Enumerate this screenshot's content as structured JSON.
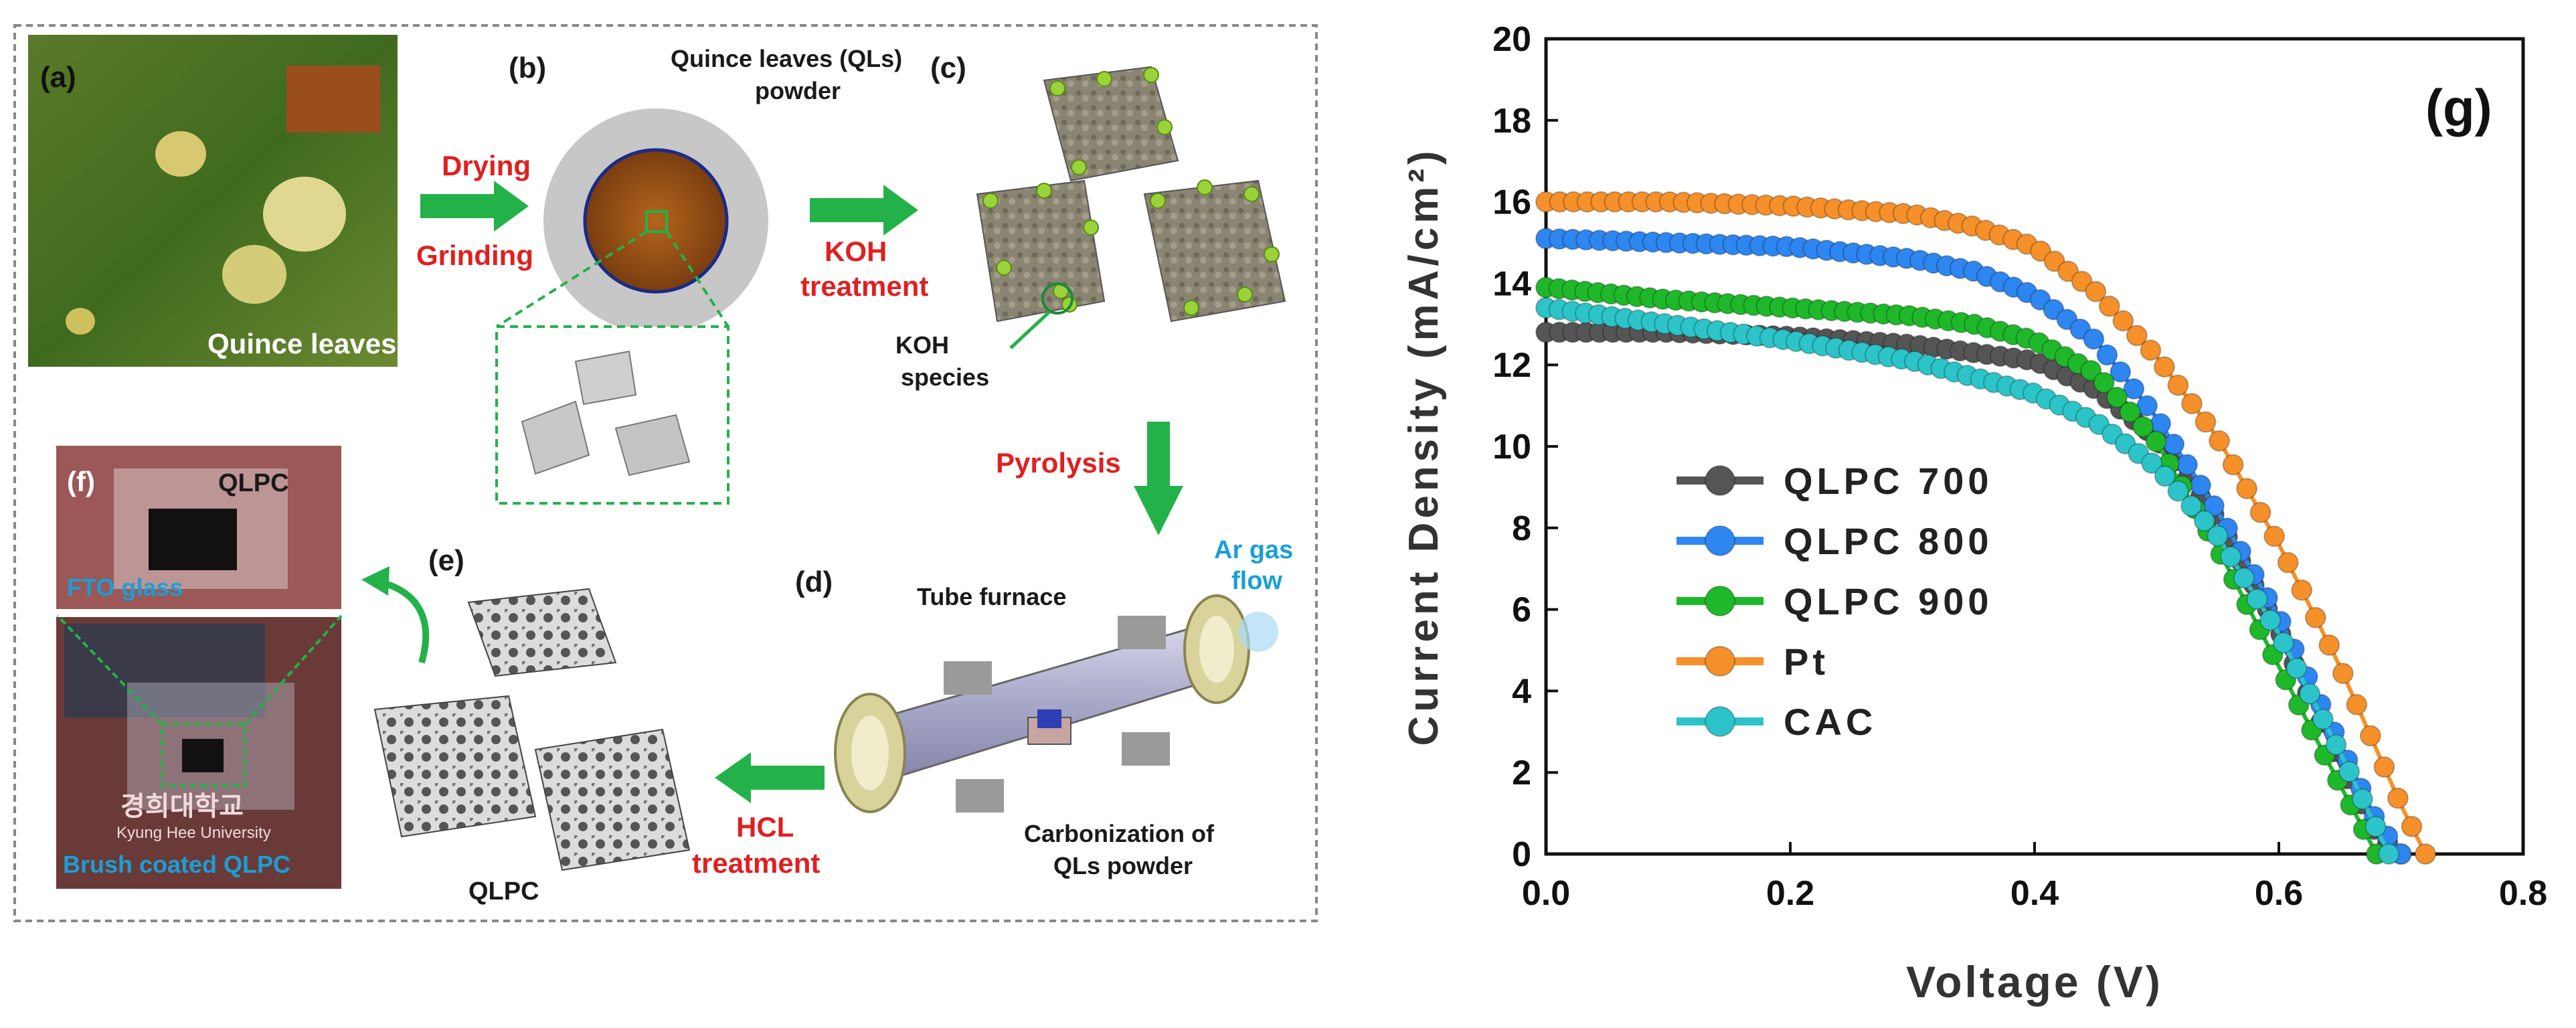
{
  "schematic": {
    "panel_letters": {
      "a": "(a)",
      "b": "(b)",
      "c": "(c)",
      "d": "(d)",
      "e": "(e)",
      "f": "(f)"
    },
    "quince_leaves": "Quince leaves",
    "powder_label_1": "Quince leaves (QLs)",
    "powder_label_2": "powder",
    "drying": "Drying",
    "grinding": "Grinding",
    "koh_treatment_1": "KOH",
    "koh_treatment_2": "treatment",
    "koh_species_1": "KOH",
    "koh_species_2": "species",
    "pyrolysis": "Pyrolysis",
    "ar_gas_1": "Ar gas",
    "ar_gas_2": "flow",
    "tube_furnace": "Tube furnace",
    "carbonization_1": "Carbonization of",
    "carbonization_2": "QLs powder",
    "hcl_treatment_1": "HCL",
    "hcl_treatment_2": "treatment",
    "qlpc_product": "QLPC",
    "qlpc_film": "QLPC",
    "fto_glass": "FTO glass",
    "brush_coated": "Brush coated QLPC",
    "univ_korean": "경희대학교",
    "univ_english": "Kyung Hee University"
  },
  "chart_data": {
    "type": "line",
    "panel_label": "(g)",
    "title": "",
    "xlabel": "Voltage (V)",
    "ylabel": "Current Density (mA/cm²)",
    "xlim": [
      0.0,
      0.8
    ],
    "ylim": [
      0,
      20
    ],
    "xticks": [
      "0.0",
      "0.2",
      "0.4",
      "0.6",
      "0.8"
    ],
    "yticks": [
      "0",
      "2",
      "4",
      "6",
      "8",
      "10",
      "12",
      "14",
      "16",
      "18",
      "20"
    ],
    "legend_position": "left-middle",
    "grid": false,
    "series": [
      {
        "name": "QLPC 700",
        "color": "#555555",
        "x": [
          0.0,
          0.1,
          0.2,
          0.3,
          0.4,
          0.45,
          0.5,
          0.55,
          0.6,
          0.65,
          0.68,
          0.7
        ],
        "y": [
          12.8,
          12.8,
          12.7,
          12.5,
          12.1,
          11.4,
          10.2,
          8.2,
          5.5,
          2.2,
          0.5,
          0
        ]
      },
      {
        "name": "QLPC 800",
        "color": "#2e86f0",
        "x": [
          0.0,
          0.1,
          0.2,
          0.3,
          0.35,
          0.4,
          0.45,
          0.5,
          0.55,
          0.6,
          0.65,
          0.68,
          0.7
        ],
        "y": [
          15.1,
          15.0,
          14.9,
          14.6,
          14.3,
          13.7,
          12.6,
          10.7,
          8.4,
          5.8,
          2.7,
          0.8,
          0
        ]
      },
      {
        "name": "QLPC 900",
        "color": "#1fb82a",
        "x": [
          0.0,
          0.1,
          0.2,
          0.3,
          0.35,
          0.4,
          0.45,
          0.5,
          0.55,
          0.6,
          0.65,
          0.68
        ],
        "y": [
          13.9,
          13.6,
          13.4,
          13.2,
          13.0,
          12.6,
          11.8,
          10.1,
          7.5,
          4.6,
          1.7,
          0
        ]
      },
      {
        "name": "Pt",
        "color": "#f5902a",
        "x": [
          0.0,
          0.1,
          0.2,
          0.3,
          0.35,
          0.4,
          0.45,
          0.5,
          0.55,
          0.6,
          0.65,
          0.7,
          0.72
        ],
        "y": [
          16.0,
          16.0,
          15.9,
          15.7,
          15.4,
          14.9,
          13.8,
          12.2,
          10.2,
          7.6,
          4.6,
          1.2,
          0
        ]
      },
      {
        "name": "CAC",
        "color": "#2cc4c8",
        "x": [
          0.0,
          0.1,
          0.2,
          0.3,
          0.4,
          0.45,
          0.5,
          0.55,
          0.6,
          0.65,
          0.69
        ],
        "y": [
          13.4,
          13.0,
          12.6,
          12.1,
          11.3,
          10.6,
          9.5,
          7.8,
          5.4,
          2.5,
          0
        ]
      }
    ]
  }
}
